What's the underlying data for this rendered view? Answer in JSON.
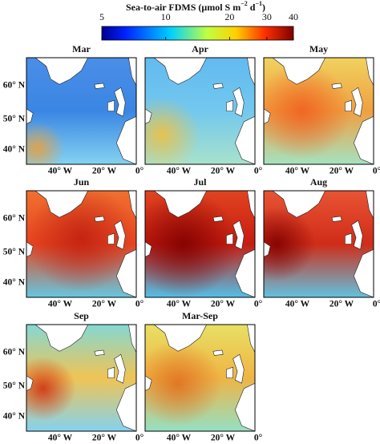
{
  "colorbar": {
    "title": {
      "text": "Sea-to-air FDMS (μmol S m",
      "sup1": "−2",
      "mid": " d",
      "sup2": "−1",
      "end": ")"
    },
    "scale": "log",
    "lim": [
      5,
      40
    ],
    "ticks": [
      5,
      10,
      20,
      30,
      40
    ]
  },
  "panels": [
    {
      "title": "Mar"
    },
    {
      "title": "Apr"
    },
    {
      "title": "May"
    },
    {
      "title": "Jun"
    },
    {
      "title": "Jul"
    },
    {
      "title": "Aug"
    },
    {
      "title": "Sep"
    },
    {
      "title": "Mar-Sep"
    }
  ],
  "axes": {
    "lat_labels": [
      "60° N",
      "50° N",
      "40° N"
    ],
    "lon_labels": [
      "40° W",
      "20° W",
      "0°"
    ]
  }
}
